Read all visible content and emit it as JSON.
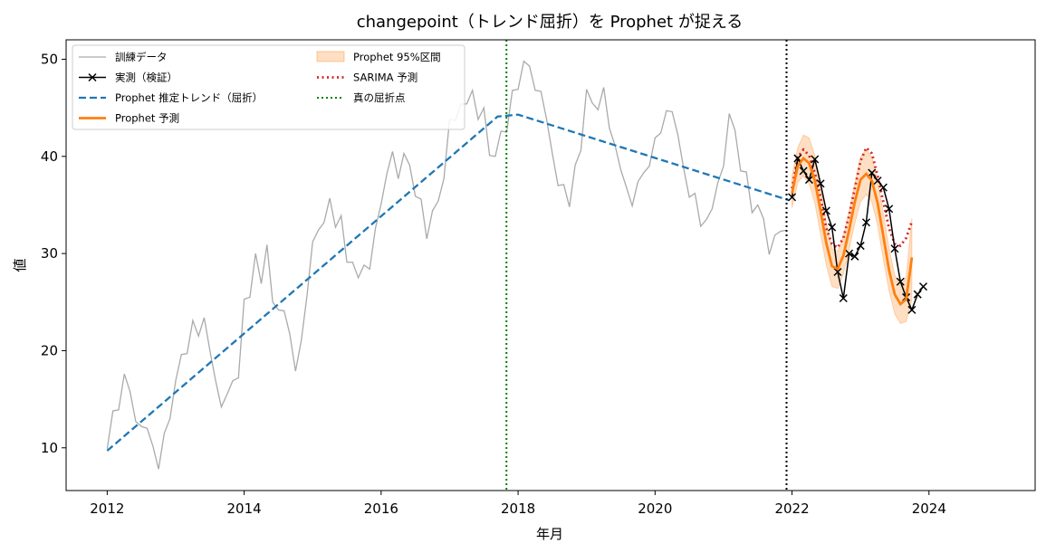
{
  "chart_data": {
    "type": "line",
    "title": "changepoint（トレンド屈折）を Prophet が捉える",
    "xlabel": "年月",
    "ylabel": "値",
    "xlim": [
      2011.4,
      2025.55
    ],
    "ylim": [
      5.6,
      52.0
    ],
    "xticks": [
      2012,
      2014,
      2016,
      2018,
      2020,
      2022,
      2024
    ],
    "yticks": [
      10,
      20,
      30,
      40,
      50
    ],
    "grid": false,
    "legend": {
      "placement": "top-left",
      "columns": 2,
      "entries": [
        {
          "key": "train",
          "label": "訓練データ"
        },
        {
          "key": "actual",
          "label": "実測（検証）"
        },
        {
          "key": "trend",
          "label": "Prophet 推定トレンド（屈折）"
        },
        {
          "key": "forecast",
          "label": "Prophet 予測"
        },
        {
          "key": "band",
          "label": "Prophet 95%区間"
        },
        {
          "key": "sarima",
          "label": "SARIMA 予測"
        },
        {
          "key": "changepoint",
          "label": "真の屈折点"
        }
      ]
    },
    "series": [
      {
        "key": "train",
        "color": "#aaaaaa",
        "x_start": 2012.0,
        "x_step": 0.0833333,
        "values": [
          9.9,
          13.8,
          13.9,
          17.6,
          15.8,
          12.7,
          12.2,
          12.0,
          10.2,
          7.8,
          11.5,
          13.0,
          16.9,
          19.6,
          19.7,
          23.1,
          21.5,
          23.4,
          20.0,
          16.9,
          14.2,
          15.5,
          16.9,
          17.2,
          25.3,
          25.5,
          30.0,
          26.9,
          30.9,
          25.0,
          24.2,
          24.1,
          21.7,
          17.9,
          21.0,
          25.6,
          31.2,
          32.4,
          33.2,
          35.7,
          32.7,
          33.9,
          29.1,
          29.1,
          27.5,
          28.8,
          28.4,
          32.6,
          35.1,
          38.2,
          40.5,
          37.7,
          40.3,
          39.1,
          35.9,
          35.6,
          31.5,
          34.4,
          35.4,
          37.7,
          43.8,
          43.7,
          45.4,
          45.4,
          46.8,
          43.8,
          45.0,
          40.1,
          40.0,
          42.6,
          42.5,
          46.8,
          46.9,
          49.8,
          49.3,
          46.8,
          46.7,
          43.8,
          40.3,
          37.0,
          37.1,
          34.8,
          39.1,
          40.6,
          46.9,
          45.5,
          44.8,
          47.1,
          42.9,
          41.1,
          38.6,
          36.8,
          34.9,
          37.4,
          38.3,
          39.0,
          41.9,
          42.4,
          44.7,
          44.6,
          42.2,
          38.8,
          35.8,
          36.2,
          32.8,
          33.5,
          34.6,
          37.3,
          39.0,
          44.4,
          42.7,
          38.5,
          38.4,
          34.2,
          35.0,
          33.6,
          29.9,
          31.9,
          32.3,
          32.4
        ]
      },
      {
        "key": "trend",
        "color": "#1f77b4",
        "points": [
          [
            2012.0,
            9.7
          ],
          [
            2017.7,
            44.1
          ],
          [
            2018.0,
            44.3
          ],
          [
            2021.95,
            35.5
          ]
        ]
      },
      {
        "key": "band",
        "color": "#ff7f0e",
        "x_start": 2022.0,
        "x_step": 0.0833333,
        "lower": [
          34.7,
          37.3,
          38.0,
          37.2,
          35.2,
          32.0,
          28.8,
          26.6,
          26.4,
          27.9,
          30.4,
          33.1,
          35.3,
          36.1,
          35.3,
          32.9,
          29.4,
          26.2,
          23.8,
          22.8,
          23.0,
          25.3
        ],
        "upper": [
          38.0,
          40.9,
          42.2,
          41.9,
          40.1,
          36.8,
          33.2,
          30.5,
          30.2,
          31.8,
          34.3,
          37.2,
          39.9,
          40.7,
          39.9,
          37.5,
          34.1,
          30.5,
          27.8,
          26.6,
          27.6,
          33.6
        ]
      },
      {
        "key": "actual",
        "color": "#000000",
        "x_start": 2022.0,
        "x_step": 0.0833333,
        "values": [
          35.8,
          39.8,
          38.5,
          37.6,
          39.7,
          37.2,
          34.4,
          32.7,
          28.1,
          25.4,
          30.0,
          29.7,
          30.8,
          33.2,
          38.3,
          37.5,
          36.8,
          34.6,
          30.5,
          27.1,
          25.5,
          24.2,
          25.8,
          26.6
        ]
      },
      {
        "key": "forecast",
        "color": "#ff7f0e",
        "x_start": 2022.0,
        "x_step": 0.0833333,
        "values": [
          36.2,
          39.0,
          39.8,
          39.3,
          37.5,
          34.4,
          31.1,
          28.7,
          28.4,
          29.8,
          32.4,
          35.3,
          37.6,
          38.2,
          37.5,
          35.2,
          31.8,
          28.3,
          25.8,
          24.8,
          25.3,
          29.6
        ]
      },
      {
        "key": "sarima",
        "color": "#d62728",
        "x_start": 2022.0,
        "x_step": 0.0833333,
        "values": [
          36.7,
          39.9,
          40.7,
          40.1,
          38.3,
          35.8,
          32.6,
          31.0,
          30.6,
          31.6,
          33.9,
          36.7,
          39.5,
          40.9,
          40.3,
          38.0,
          35.3,
          32.6,
          31.0,
          30.8,
          31.6,
          33.3
        ]
      },
      {
        "key": "changepoint",
        "color": "#008000",
        "x": 2017.83
      },
      {
        "key": "split",
        "color": "#000000",
        "x": 2021.92
      }
    ]
  }
}
